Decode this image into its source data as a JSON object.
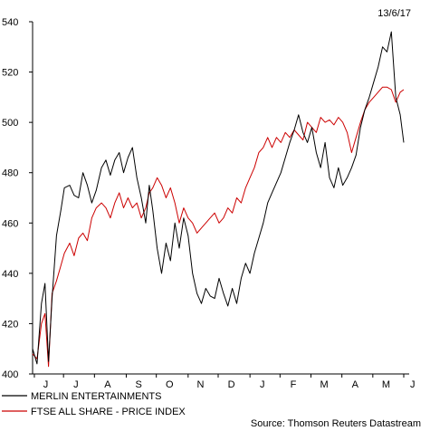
{
  "chart_data": {
    "type": "line",
    "date_label": "13/6/17",
    "source": "Source: Thomson Reuters Datastream",
    "ylim": [
      400,
      540
    ],
    "yticks": [
      400,
      420,
      440,
      460,
      480,
      500,
      520,
      540
    ],
    "xticks": [
      "J",
      "J",
      "A",
      "S",
      "O",
      "N",
      "D",
      "J",
      "F",
      "M",
      "A",
      "M",
      "J"
    ],
    "grid": false,
    "legend_position": "bottom-left",
    "series": [
      {
        "name": "MERLIN ENTERTAINMENTS",
        "color": "#000000",
        "values": [
          [
            0.0,
            410
          ],
          [
            0.5,
            404
          ],
          [
            1.0,
            428
          ],
          [
            1.4,
            436
          ],
          [
            1.8,
            405
          ],
          [
            2.2,
            430
          ],
          [
            2.7,
            455
          ],
          [
            3.2,
            465
          ],
          [
            3.6,
            474
          ],
          [
            4.2,
            475
          ],
          [
            4.7,
            471
          ],
          [
            5.2,
            470
          ],
          [
            5.7,
            480
          ],
          [
            6.2,
            475
          ],
          [
            6.7,
            468
          ],
          [
            7.2,
            473
          ],
          [
            7.8,
            482
          ],
          [
            8.3,
            485
          ],
          [
            8.8,
            479
          ],
          [
            9.3,
            485
          ],
          [
            9.8,
            488
          ],
          [
            10.3,
            480
          ],
          [
            10.8,
            486
          ],
          [
            11.3,
            490
          ],
          [
            11.8,
            478
          ],
          [
            12.3,
            470
          ],
          [
            12.8,
            460
          ],
          [
            13.2,
            475
          ],
          [
            13.6,
            465
          ],
          [
            14.1,
            450
          ],
          [
            14.6,
            440
          ],
          [
            15.1,
            452
          ],
          [
            15.6,
            445
          ],
          [
            16.1,
            460
          ],
          [
            16.6,
            450
          ],
          [
            17.1,
            462
          ],
          [
            17.6,
            455
          ],
          [
            18.1,
            440
          ],
          [
            18.6,
            432
          ],
          [
            19.1,
            428
          ],
          [
            19.6,
            434
          ],
          [
            20.1,
            431
          ],
          [
            20.6,
            430
          ],
          [
            21.1,
            438
          ],
          [
            21.6,
            432
          ],
          [
            22.1,
            427
          ],
          [
            22.6,
            434
          ],
          [
            23.1,
            428
          ],
          [
            23.6,
            438
          ],
          [
            24.1,
            444
          ],
          [
            24.6,
            440
          ],
          [
            25.1,
            448
          ],
          [
            25.6,
            454
          ],
          [
            26.1,
            460
          ],
          [
            26.6,
            468
          ],
          [
            27.1,
            472
          ],
          [
            27.6,
            476
          ],
          [
            28.1,
            480
          ],
          [
            28.6,
            486
          ],
          [
            29.1,
            492
          ],
          [
            29.6,
            497
          ],
          [
            30.1,
            503
          ],
          [
            30.6,
            496
          ],
          [
            31.1,
            492
          ],
          [
            31.6,
            498
          ],
          [
            32.1,
            488
          ],
          [
            32.6,
            482
          ],
          [
            33.1,
            492
          ],
          [
            33.6,
            478
          ],
          [
            34.1,
            474
          ],
          [
            34.6,
            482
          ],
          [
            35.1,
            475
          ],
          [
            35.6,
            478
          ],
          [
            36.1,
            482
          ],
          [
            36.6,
            487
          ],
          [
            37.1,
            498
          ],
          [
            37.6,
            505
          ],
          [
            38.1,
            510
          ],
          [
            38.6,
            516
          ],
          [
            39.1,
            522
          ],
          [
            39.6,
            530
          ],
          [
            40.1,
            528
          ],
          [
            40.6,
            536
          ],
          [
            41.1,
            510
          ],
          [
            41.6,
            503
          ],
          [
            42.0,
            492
          ]
        ]
      },
      {
        "name": "FTSE ALL SHARE - PRICE INDEX",
        "color": "#cc0000",
        "values": [
          [
            0.0,
            408
          ],
          [
            0.5,
            406
          ],
          [
            1.0,
            420
          ],
          [
            1.4,
            424
          ],
          [
            1.8,
            403
          ],
          [
            2.2,
            432
          ],
          [
            2.7,
            437
          ],
          [
            3.2,
            443
          ],
          [
            3.6,
            448
          ],
          [
            4.2,
            452
          ],
          [
            4.7,
            447
          ],
          [
            5.2,
            454
          ],
          [
            5.7,
            456
          ],
          [
            6.2,
            453
          ],
          [
            6.7,
            462
          ],
          [
            7.2,
            466
          ],
          [
            7.8,
            468
          ],
          [
            8.3,
            466
          ],
          [
            8.8,
            462
          ],
          [
            9.3,
            468
          ],
          [
            9.8,
            472
          ],
          [
            10.3,
            466
          ],
          [
            10.8,
            470
          ],
          [
            11.3,
            466
          ],
          [
            11.8,
            468
          ],
          [
            12.3,
            462
          ],
          [
            12.8,
            466
          ],
          [
            13.2,
            472
          ],
          [
            13.6,
            474
          ],
          [
            14.1,
            478
          ],
          [
            14.6,
            475
          ],
          [
            15.1,
            470
          ],
          [
            15.6,
            474
          ],
          [
            16.1,
            468
          ],
          [
            16.6,
            460
          ],
          [
            17.1,
            466
          ],
          [
            17.6,
            462
          ],
          [
            18.1,
            460
          ],
          [
            18.6,
            456
          ],
          [
            19.1,
            458
          ],
          [
            19.6,
            460
          ],
          [
            20.1,
            462
          ],
          [
            20.6,
            464
          ],
          [
            21.1,
            460
          ],
          [
            21.6,
            462
          ],
          [
            22.1,
            466
          ],
          [
            22.6,
            464
          ],
          [
            23.1,
            470
          ],
          [
            23.6,
            468
          ],
          [
            24.1,
            474
          ],
          [
            24.6,
            478
          ],
          [
            25.1,
            482
          ],
          [
            25.6,
            488
          ],
          [
            26.1,
            490
          ],
          [
            26.6,
            494
          ],
          [
            27.1,
            490
          ],
          [
            27.6,
            494
          ],
          [
            28.1,
            492
          ],
          [
            28.6,
            496
          ],
          [
            29.1,
            494
          ],
          [
            29.6,
            497
          ],
          [
            30.1,
            495
          ],
          [
            30.6,
            493
          ],
          [
            31.1,
            500
          ],
          [
            31.6,
            498
          ],
          [
            32.1,
            496
          ],
          [
            32.6,
            502
          ],
          [
            33.1,
            500
          ],
          [
            33.6,
            501
          ],
          [
            34.1,
            499
          ],
          [
            34.6,
            502
          ],
          [
            35.1,
            500
          ],
          [
            35.6,
            496
          ],
          [
            36.1,
            488
          ],
          [
            36.6,
            494
          ],
          [
            37.1,
            500
          ],
          [
            37.6,
            505
          ],
          [
            38.1,
            508
          ],
          [
            38.6,
            510
          ],
          [
            39.1,
            512
          ],
          [
            39.6,
            514
          ],
          [
            40.1,
            514
          ],
          [
            40.6,
            513
          ],
          [
            41.1,
            508
          ],
          [
            41.6,
            512
          ],
          [
            42.0,
            513
          ]
        ]
      }
    ]
  }
}
